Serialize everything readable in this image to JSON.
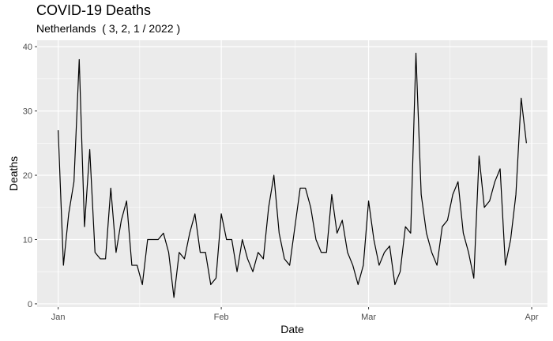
{
  "chart_data": {
    "type": "line",
    "title": "COVID-19 Deaths",
    "subtitle": "Netherlands  ( 3, 2, 1 / 2022 )",
    "xlabel": "Date",
    "ylabel": "Deaths",
    "x_start": "2022-01-01",
    "x_ticks": [
      {
        "date": "2022-01-01",
        "label": "Jan"
      },
      {
        "date": "2022-02-01",
        "label": "Feb"
      },
      {
        "date": "2022-03-01",
        "label": "Mar"
      },
      {
        "date": "2022-04-01",
        "label": "Apr"
      }
    ],
    "y_ticks": [
      0,
      10,
      20,
      30,
      40
    ],
    "ylim": [
      -0.5,
      41
    ],
    "xlim": [
      "2021-12-28",
      "2022-04-04"
    ],
    "grid": true,
    "line_color": "#000000",
    "panel_background": "#ebebeb",
    "series": [
      {
        "values": [
          27,
          6,
          14,
          19,
          38,
          12,
          24,
          8,
          7,
          7,
          18,
          8,
          13,
          16,
          6,
          6,
          3,
          10,
          10,
          10,
          11,
          8,
          1,
          8,
          7,
          11,
          14,
          8,
          8,
          3,
          4,
          14,
          10,
          10,
          5,
          10,
          7,
          5,
          8,
          7,
          15,
          20,
          11,
          7,
          6,
          12,
          18,
          18,
          15,
          10,
          8,
          8,
          17,
          11,
          13,
          8,
          6,
          3,
          6,
          16,
          10,
          6,
          8,
          9,
          3,
          5,
          12,
          11,
          39,
          17,
          11,
          8,
          6,
          12,
          13,
          17,
          19,
          11,
          8,
          4,
          23,
          15,
          16,
          19,
          21,
          6,
          10,
          17,
          32,
          25
        ]
      }
    ]
  }
}
